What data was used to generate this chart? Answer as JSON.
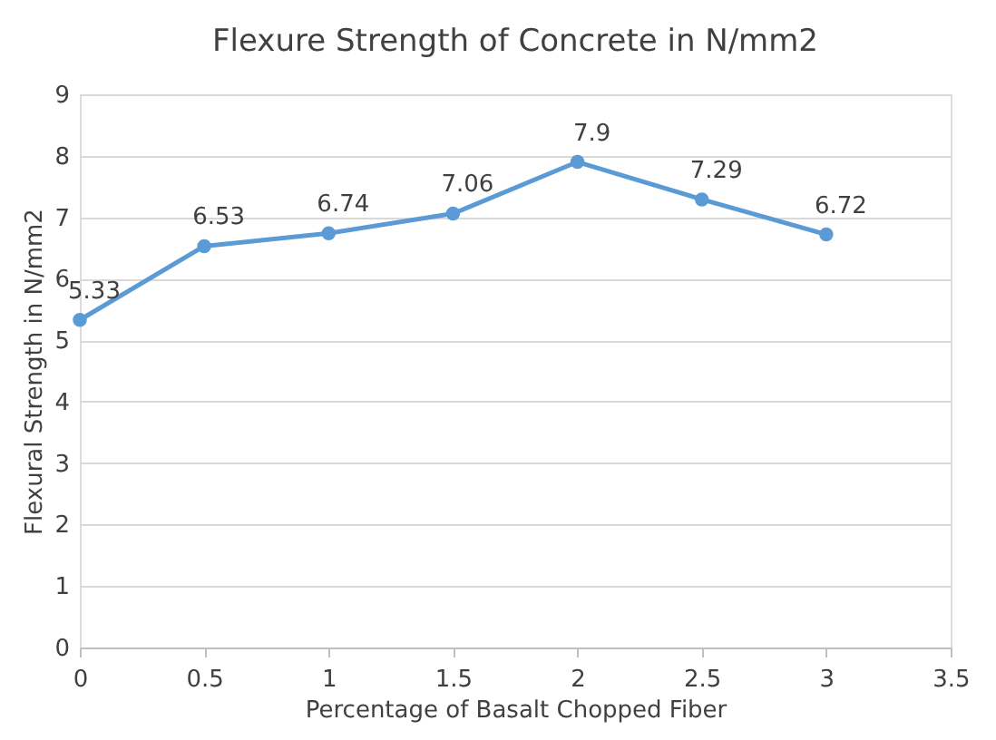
{
  "chart_data": {
    "type": "line",
    "title": "Flexure Strength of Concrete in N/mm2",
    "xlabel": "Percentage of Basalt Chopped Fiber",
    "ylabel": "Flexural Strength in N/mm2",
    "x": [
      0,
      0.5,
      1,
      1.5,
      2,
      2.5,
      3
    ],
    "series": [
      {
        "color": "#5b9bd5",
        "values": [
          5.33,
          6.53,
          6.74,
          7.06,
          7.9,
          7.29,
          6.72
        ]
      }
    ],
    "xlim": [
      0,
      3.5
    ],
    "xticks": [
      0,
      0.5,
      1,
      1.5,
      2,
      2.5,
      3,
      3.5
    ],
    "ylim": [
      0,
      9
    ],
    "yticks": [
      0,
      1,
      2,
      3,
      4,
      5,
      6,
      7,
      8,
      9
    ],
    "grid": "y",
    "marker": "circle",
    "line_style": "solid",
    "data_labels": true
  }
}
